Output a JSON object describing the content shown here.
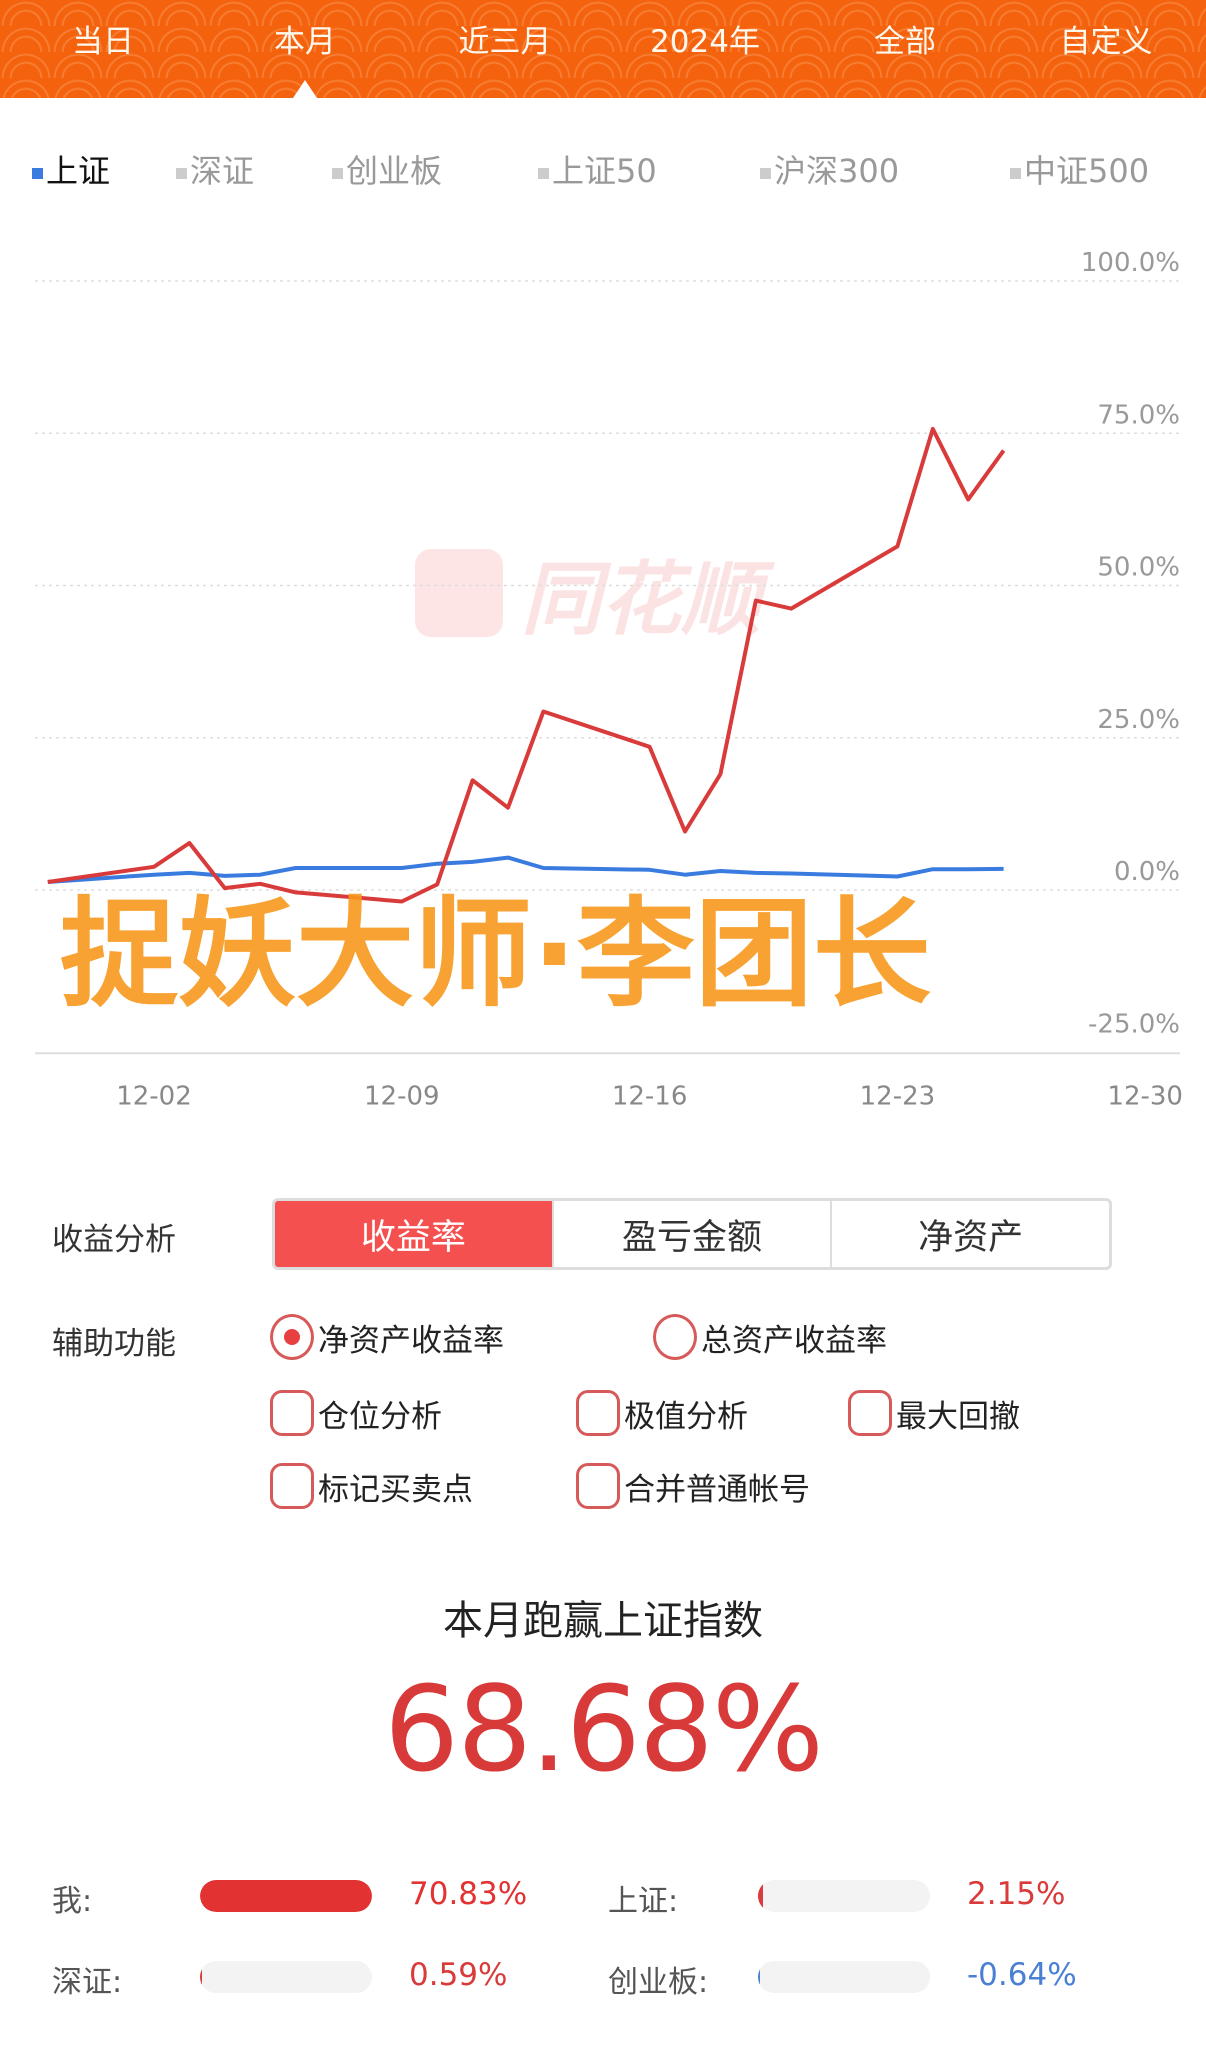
{
  "period_tabs": [
    "当日",
    "本月",
    "近三月",
    "2024年",
    "全部",
    "自定义"
  ],
  "active_period": "本月",
  "index_tabs": [
    "上证",
    "深证",
    "创业板",
    "上证50",
    "沪深300",
    "中证500"
  ],
  "active_index": "上证",
  "watermark_logo": "同花顺",
  "chart_data": {
    "type": "line",
    "x": [
      "11-29",
      "12-02",
      "12-03",
      "12-04",
      "12-05",
      "12-06",
      "12-09",
      "12-10",
      "12-11",
      "12-12",
      "12-13",
      "12-16",
      "12-17",
      "12-18",
      "12-19",
      "12-20",
      "12-23",
      "12-24",
      "12-25",
      "12-26"
    ],
    "x_ticks": [
      "12-02",
      "12-09",
      "12-16",
      "12-23",
      "12-30"
    ],
    "y_ticks": [
      "100.0%",
      "75.0%",
      "50.0%",
      "25.0%",
      "0.0%",
      "-25.0%"
    ],
    "ylim": [
      -25,
      100
    ],
    "grid": true,
    "series": [
      {
        "color": "#d93a3a",
        "values": [
          0,
          2.5,
          6.4,
          -1,
          -0.3,
          -1.7,
          -3.2,
          -0.4,
          16.7,
          12.2,
          28,
          22.2,
          8.3,
          17.7,
          46.2,
          44.9,
          55.1,
          74.4,
          62.8,
          70.83
        ]
      },
      {
        "color": "#3a7be0",
        "values": [
          0,
          1.2,
          1.5,
          1.0,
          1.2,
          2.3,
          2.3,
          3.0,
          3.3,
          4.0,
          2.3,
          2.0,
          1.2,
          1.8,
          1.5,
          1.4,
          0.9,
          2.1,
          2.1,
          2.15
        ]
      }
    ]
  },
  "analysis": {
    "label": "收益分析",
    "options": [
      "收益率",
      "盈亏金额",
      "净资产"
    ],
    "active": "收益率"
  },
  "aux": {
    "label": "辅助功能",
    "radios": [
      {
        "label": "净资产收益率",
        "checked": true
      },
      {
        "label": "总资产收益率",
        "checked": false
      }
    ],
    "checks": [
      {
        "label": "仓位分析"
      },
      {
        "label": "极值分析"
      },
      {
        "label": "最大回撤"
      },
      {
        "label": "标记买卖点"
      },
      {
        "label": "合并普通帐号"
      }
    ]
  },
  "summary": {
    "title": "本月跑赢上证指数",
    "value": "68.68%"
  },
  "compare": [
    {
      "label": "我:",
      "value": "70.83%",
      "pct": 70.83,
      "color": "#e33232"
    },
    {
      "label": "上证:",
      "value": "2.15%",
      "pct": 2.15,
      "color": "#d93a3a"
    },
    {
      "label": "深证:",
      "value": "0.59%",
      "pct": 0.59,
      "color": "#d93a3a"
    },
    {
      "label": "创业板:",
      "value": "-0.64%",
      "pct": -0.64,
      "color": "#4a7fd4"
    }
  ],
  "overlay_watermark": "捉妖大师·李团长"
}
